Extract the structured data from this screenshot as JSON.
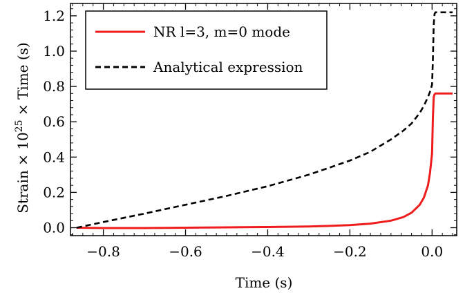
{
  "chart_data": {
    "type": "line",
    "xlabel": "Time (s)",
    "ylabel": {
      "prefix": "Strain × 10",
      "exponent": "25",
      "suffix": " × Time (s)"
    },
    "xlim": [
      -0.88,
      0.06
    ],
    "ylim": [
      -0.045,
      1.27
    ],
    "xticks": [
      -0.8,
      -0.6,
      -0.4,
      -0.2,
      0.0
    ],
    "xtick_labels": [
      "−0.8",
      "−0.6",
      "−0.4",
      "−0.2",
      "0.0"
    ],
    "yticks": [
      0.0,
      0.2,
      0.4,
      0.6,
      0.8,
      1.0,
      1.2
    ],
    "ytick_labels": [
      "0.0",
      "0.2",
      "0.4",
      "0.6",
      "0.8",
      "1.0",
      "1.2"
    ],
    "grid": false,
    "legend_position": "top-left",
    "series": [
      {
        "name": "NR l=3, m=0 mode",
        "color": "#ee1c1c",
        "style": "solid",
        "x": [
          -0.865,
          -0.8,
          -0.7,
          -0.6,
          -0.5,
          -0.4,
          -0.3,
          -0.25,
          -0.2,
          -0.15,
          -0.1,
          -0.07,
          -0.05,
          -0.03,
          -0.02,
          -0.01,
          -0.005,
          0.0,
          0.002,
          0.004,
          0.006,
          0.008,
          0.05
        ],
        "y": [
          0.0,
          -0.002,
          -0.002,
          0.0,
          0.002,
          0.004,
          0.007,
          0.01,
          0.015,
          0.023,
          0.04,
          0.06,
          0.085,
          0.13,
          0.17,
          0.24,
          0.31,
          0.42,
          0.62,
          0.74,
          0.755,
          0.76,
          0.76
        ]
      },
      {
        "name": "Analytical expression",
        "color": "#000000",
        "style": "dashed",
        "x": [
          -0.865,
          -0.8,
          -0.7,
          -0.6,
          -0.5,
          -0.4,
          -0.3,
          -0.2,
          -0.15,
          -0.1,
          -0.07,
          -0.05,
          -0.03,
          -0.02,
          -0.01,
          -0.005,
          0.0,
          0.002,
          0.004,
          0.006,
          0.008,
          0.05
        ],
        "y": [
          0.0,
          0.032,
          0.08,
          0.13,
          0.18,
          0.235,
          0.3,
          0.38,
          0.43,
          0.5,
          0.55,
          0.59,
          0.65,
          0.69,
          0.74,
          0.77,
          0.81,
          0.95,
          1.15,
          1.21,
          1.22,
          1.22
        ]
      }
    ]
  }
}
